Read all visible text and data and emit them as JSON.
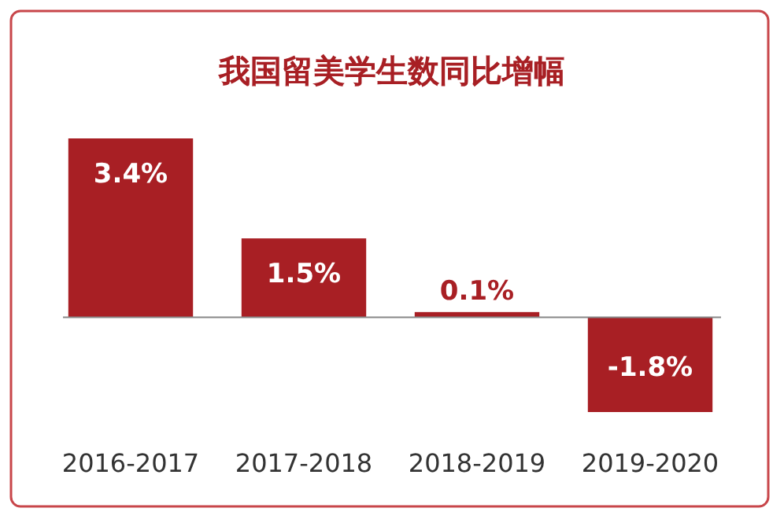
{
  "chart_data": {
    "type": "bar",
    "title": "我国留美学生数同比增幅",
    "categories": [
      "2016-2017",
      "2017-2018",
      "2018-2019",
      "2019-2020"
    ],
    "values": [
      3.4,
      1.5,
      0.1,
      -1.8
    ],
    "value_labels": [
      "3.4%",
      "1.5%",
      "0.1%",
      "-1.8%"
    ],
    "color": "#a81f24"
  }
}
